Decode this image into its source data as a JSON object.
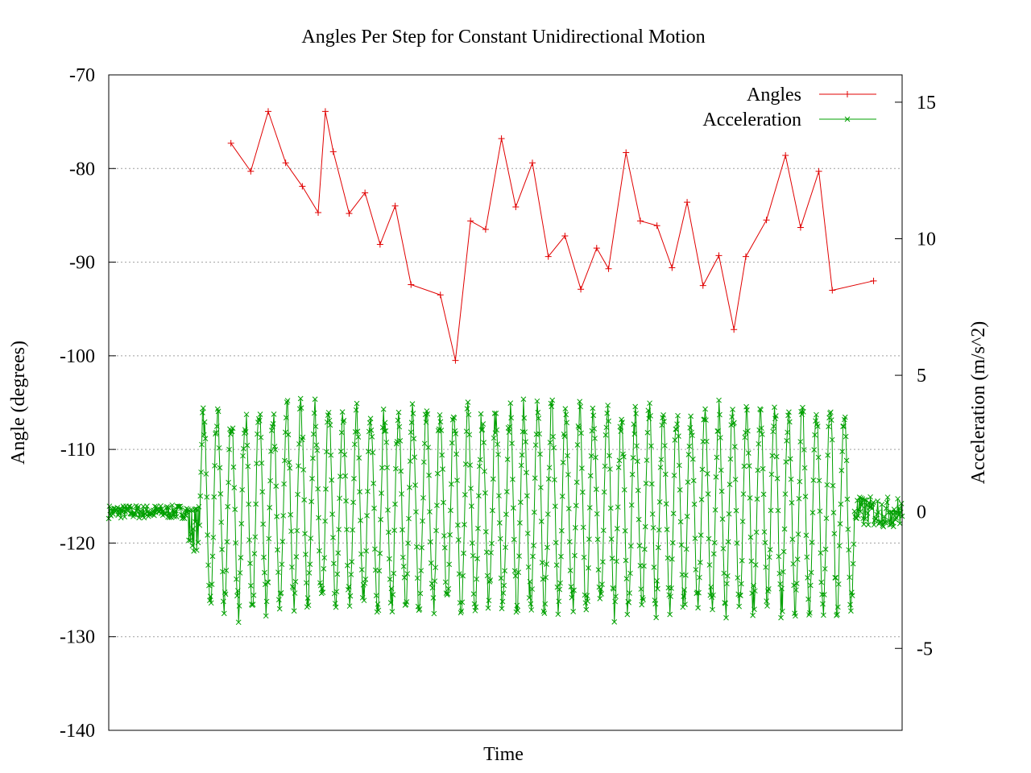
{
  "chart_data": {
    "type": "line",
    "title": "Angles Per Step for Constant Unidirectional Motion",
    "xlabel": "Time",
    "ylabel": "Angle (degrees)",
    "y2label": "Acceleration (m/s^2)",
    "ylim": [
      -140,
      -70
    ],
    "y2lim": [
      -8,
      16
    ],
    "yticks": [
      -70,
      -80,
      -90,
      -100,
      -110,
      -120,
      -130,
      -140
    ],
    "y2ticks": [
      15,
      10,
      5,
      0,
      -5
    ],
    "xlim": [
      0,
      1000
    ],
    "grid": "horizontal dashed",
    "legend": "top-right",
    "series": [
      {
        "name": "Angles",
        "axis": "left",
        "color": "#e00000",
        "marker": "plus",
        "x": [
          154,
          179,
          201,
          223,
          244,
          264,
          273,
          283,
          303,
          323,
          342,
          361,
          381,
          418,
          437,
          456,
          475,
          495,
          513,
          534,
          554,
          575,
          595,
          615,
          630,
          652,
          670,
          691,
          710,
          729,
          749,
          769,
          788,
          803,
          829,
          853,
          872,
          895,
          912,
          964
        ],
        "y": [
          -77.3,
          -80.3,
          -73.9,
          -79.4,
          -81.9,
          -84.7,
          -73.9,
          -78.2,
          -84.8,
          -82.6,
          -88.1,
          -84.0,
          -92.4,
          -93.5,
          -100.5,
          -85.6,
          -86.5,
          -76.8,
          -84.1,
          -79.4,
          -89.4,
          -87.2,
          -92.9,
          -88.5,
          -90.7,
          -78.3,
          -85.6,
          -86.1,
          -90.6,
          -83.6,
          -92.5,
          -89.3,
          -97.2,
          -89.4,
          -85.5,
          -78.6,
          -86.3,
          -80.3,
          -93.0,
          -92.0
        ]
      },
      {
        "name": "Acceleration",
        "axis": "right",
        "color": "#00a000",
        "marker": "cross",
        "x_range": [
          0,
          1000
        ],
        "segments": [
          {
            "x_end": 100,
            "baseline": 0.0,
            "amplitude": 0.35
          },
          {
            "x_end": 115,
            "baseline": -0.6,
            "amplitude": 1.2
          },
          {
            "x_end": 940,
            "baseline": 0.1,
            "amplitude": 3.6
          },
          {
            "x_end": 1000,
            "baseline": 0.0,
            "amplitude": 0.8
          }
        ],
        "cycles": 47,
        "ymax": 5.3,
        "ymin": -4.5
      }
    ]
  }
}
